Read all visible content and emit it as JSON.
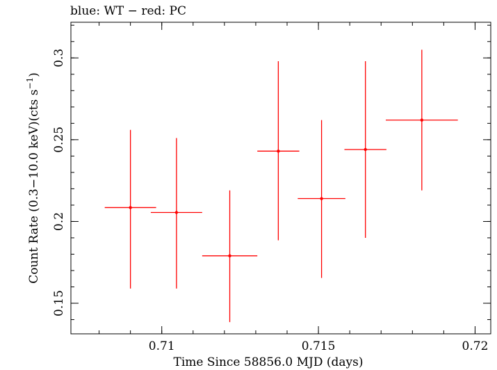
{
  "chart_data": {
    "type": "scatter",
    "title": "blue: WT − red: PC",
    "xlabel": "Time Since 58856.0 MJD (days)",
    "ylabel_main": "Count Rate (0.3−10.0 keV)(cts s",
    "ylabel_sup": "−1",
    "ylabel_end": ")",
    "xlim": [
      0.7071,
      0.7205
    ],
    "ylim": [
      0.1313,
      0.3218
    ],
    "xticks": [
      {
        "value": 0.71,
        "label": "0.71"
      },
      {
        "value": 0.715,
        "label": "0.715"
      },
      {
        "value": 0.72,
        "label": "0.72"
      }
    ],
    "yticks": [
      {
        "value": 0.15,
        "label": "0.15"
      },
      {
        "value": 0.2,
        "label": "0.2"
      },
      {
        "value": 0.25,
        "label": "0.25"
      },
      {
        "value": 0.3,
        "label": "0.3"
      }
    ],
    "x_minor_step": 0.001,
    "y_minor_step": 0.01,
    "series": [
      {
        "color": "#ff0000",
        "points": [
          {
            "x": 0.709,
            "xerr": 0.00082,
            "y": 0.2085,
            "yerr_low": 0.0495,
            "yerr_high": 0.0475
          },
          {
            "x": 0.71047,
            "xerr": 0.00082,
            "y": 0.2055,
            "yerr_low": 0.0465,
            "yerr_high": 0.0455
          },
          {
            "x": 0.71217,
            "xerr": 0.00088,
            "y": 0.179,
            "yerr_low": 0.0405,
            "yerr_high": 0.04
          },
          {
            "x": 0.71372,
            "xerr": 0.00067,
            "y": 0.243,
            "yerr_low": 0.0545,
            "yerr_high": 0.055
          },
          {
            "x": 0.7151,
            "xerr": 0.00076,
            "y": 0.214,
            "yerr_low": 0.0485,
            "yerr_high": 0.048
          },
          {
            "x": 0.7165,
            "xerr": 0.00067,
            "y": 0.244,
            "yerr_low": 0.054,
            "yerr_high": 0.054
          },
          {
            "x": 0.7183,
            "xerr": 0.00115,
            "y": 0.262,
            "yerr_low": 0.043,
            "yerr_high": 0.043
          }
        ]
      }
    ]
  }
}
